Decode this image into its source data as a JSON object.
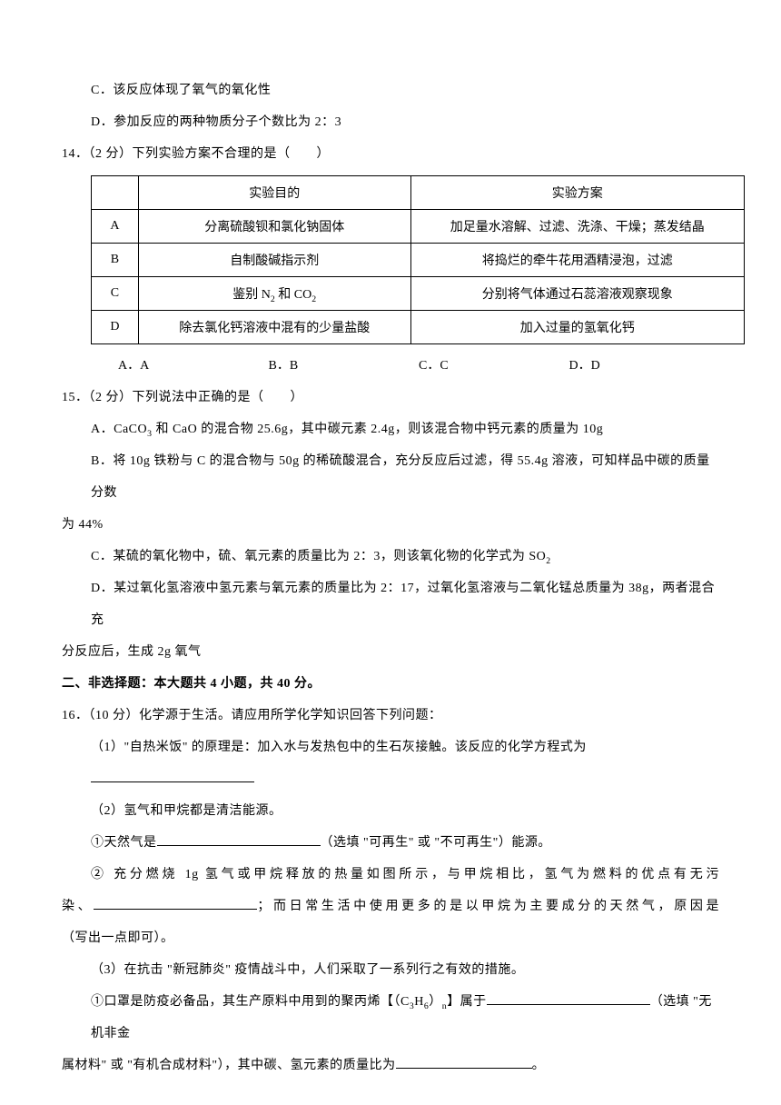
{
  "q13": {
    "optC": "C．该反应体现了氧气的氧化性",
    "optD": "D．参加反应的两种物质分子个数比为 2：3"
  },
  "q14": {
    "stem": "14．（2 分）下列实验方案不合理的是（　　）",
    "header1": "实验目的",
    "header2": "实验方案",
    "rows": [
      {
        "k": "A",
        "p": "分离硫酸钡和氯化钠固体",
        "s": "加足量水溶解、过滤、洗涤、干燥；蒸发结晶"
      },
      {
        "k": "B",
        "p": "自制酸碱指示剂",
        "s": "将捣烂的牵牛花用酒精浸泡，过滤"
      },
      {
        "k": "C",
        "p": "",
        "s": "分别将气体通过石蕊溶液观察现象"
      },
      {
        "k": "D",
        "p": "除去氯化钙溶液中混有的少量盐酸",
        "s": "加入过量的氢氧化钙"
      }
    ],
    "rowC_prefix": "鉴别 N",
    "rowC_suffix": " 和 CO",
    "optA": "A．A",
    "optB": "B．B",
    "optC": "C．C",
    "optD": "D．D"
  },
  "q15": {
    "stem": "15．（2 分）下列说法中正确的是（　　）",
    "optA_pre": "A．CaCO",
    "optA_mid": " 和 CaO 的混合物 25.6g，其中碳元素 2.4g，则该混合物中钙元素的质量为 10g",
    "optB": "B．将 10g 铁粉与 C 的混合物与 50g 的稀硫酸混合，充分反应后过滤，得 55.4g 溶液，可知样品中碳的质量分数",
    "optB2": "为 44%",
    "optC_pre": "C．某硫的氧化物中，硫、氧元素的质量比为 2：3，则该氧化物的化学式为 SO",
    "optD": "D．某过氧化氢溶液中氢元素与氧元素的质量比为 2：17，过氧化氢溶液与二氧化锰总质量为 38g，两者混合充",
    "optD2": "分反应后，生成 2g 氧气"
  },
  "section2": "二、非选择题：本大题共 4 小题，共 40 分。",
  "q16": {
    "stem": "16．（10 分）化学源于生活。请应用所学化学知识回答下列问题：",
    "p1": "（1）\"自热米饭\" 的原理是：加入水与发热包中的生石灰接触。该反应的化学方程式为",
    "p2": "（2）氢气和甲烷都是清洁能源。",
    "p2_1a": "①天然气是",
    "p2_1b": "（选填 \"可再生\" 或 \"不可再生\"）能源。",
    "p2_2a": "② 充分燃烧 1g 氢气或甲烷释放的热量如图所示，与甲烷相比，氢气为燃料的优点有无污",
    "p2_2b": "染、",
    "p2_2c": "；而日常生活中使用更多的是以甲烷为主要成分的天然气，原因是",
    "p2_2d": "（写出一点即可）。",
    "p3": "（3）在抗击 \"新冠肺炎\" 疫情战斗中，人们采取了一系列行之有效的措施。",
    "p3_1a": "①口罩是防疫必备品，其生产原料中用到的聚丙烯【（C",
    "p3_1b": "）",
    "p3_1c": "】属于",
    "p3_1d": "（选填 \"无机非金",
    "p3_1e": "属材料\" 或 \"有机合成材料\"），其中碳、氢元素的质量比为",
    "p3_1f": "。"
  },
  "sub2": "2",
  "sub3": "3",
  "sub6": "6",
  "subn": "n",
  "subH": "H"
}
